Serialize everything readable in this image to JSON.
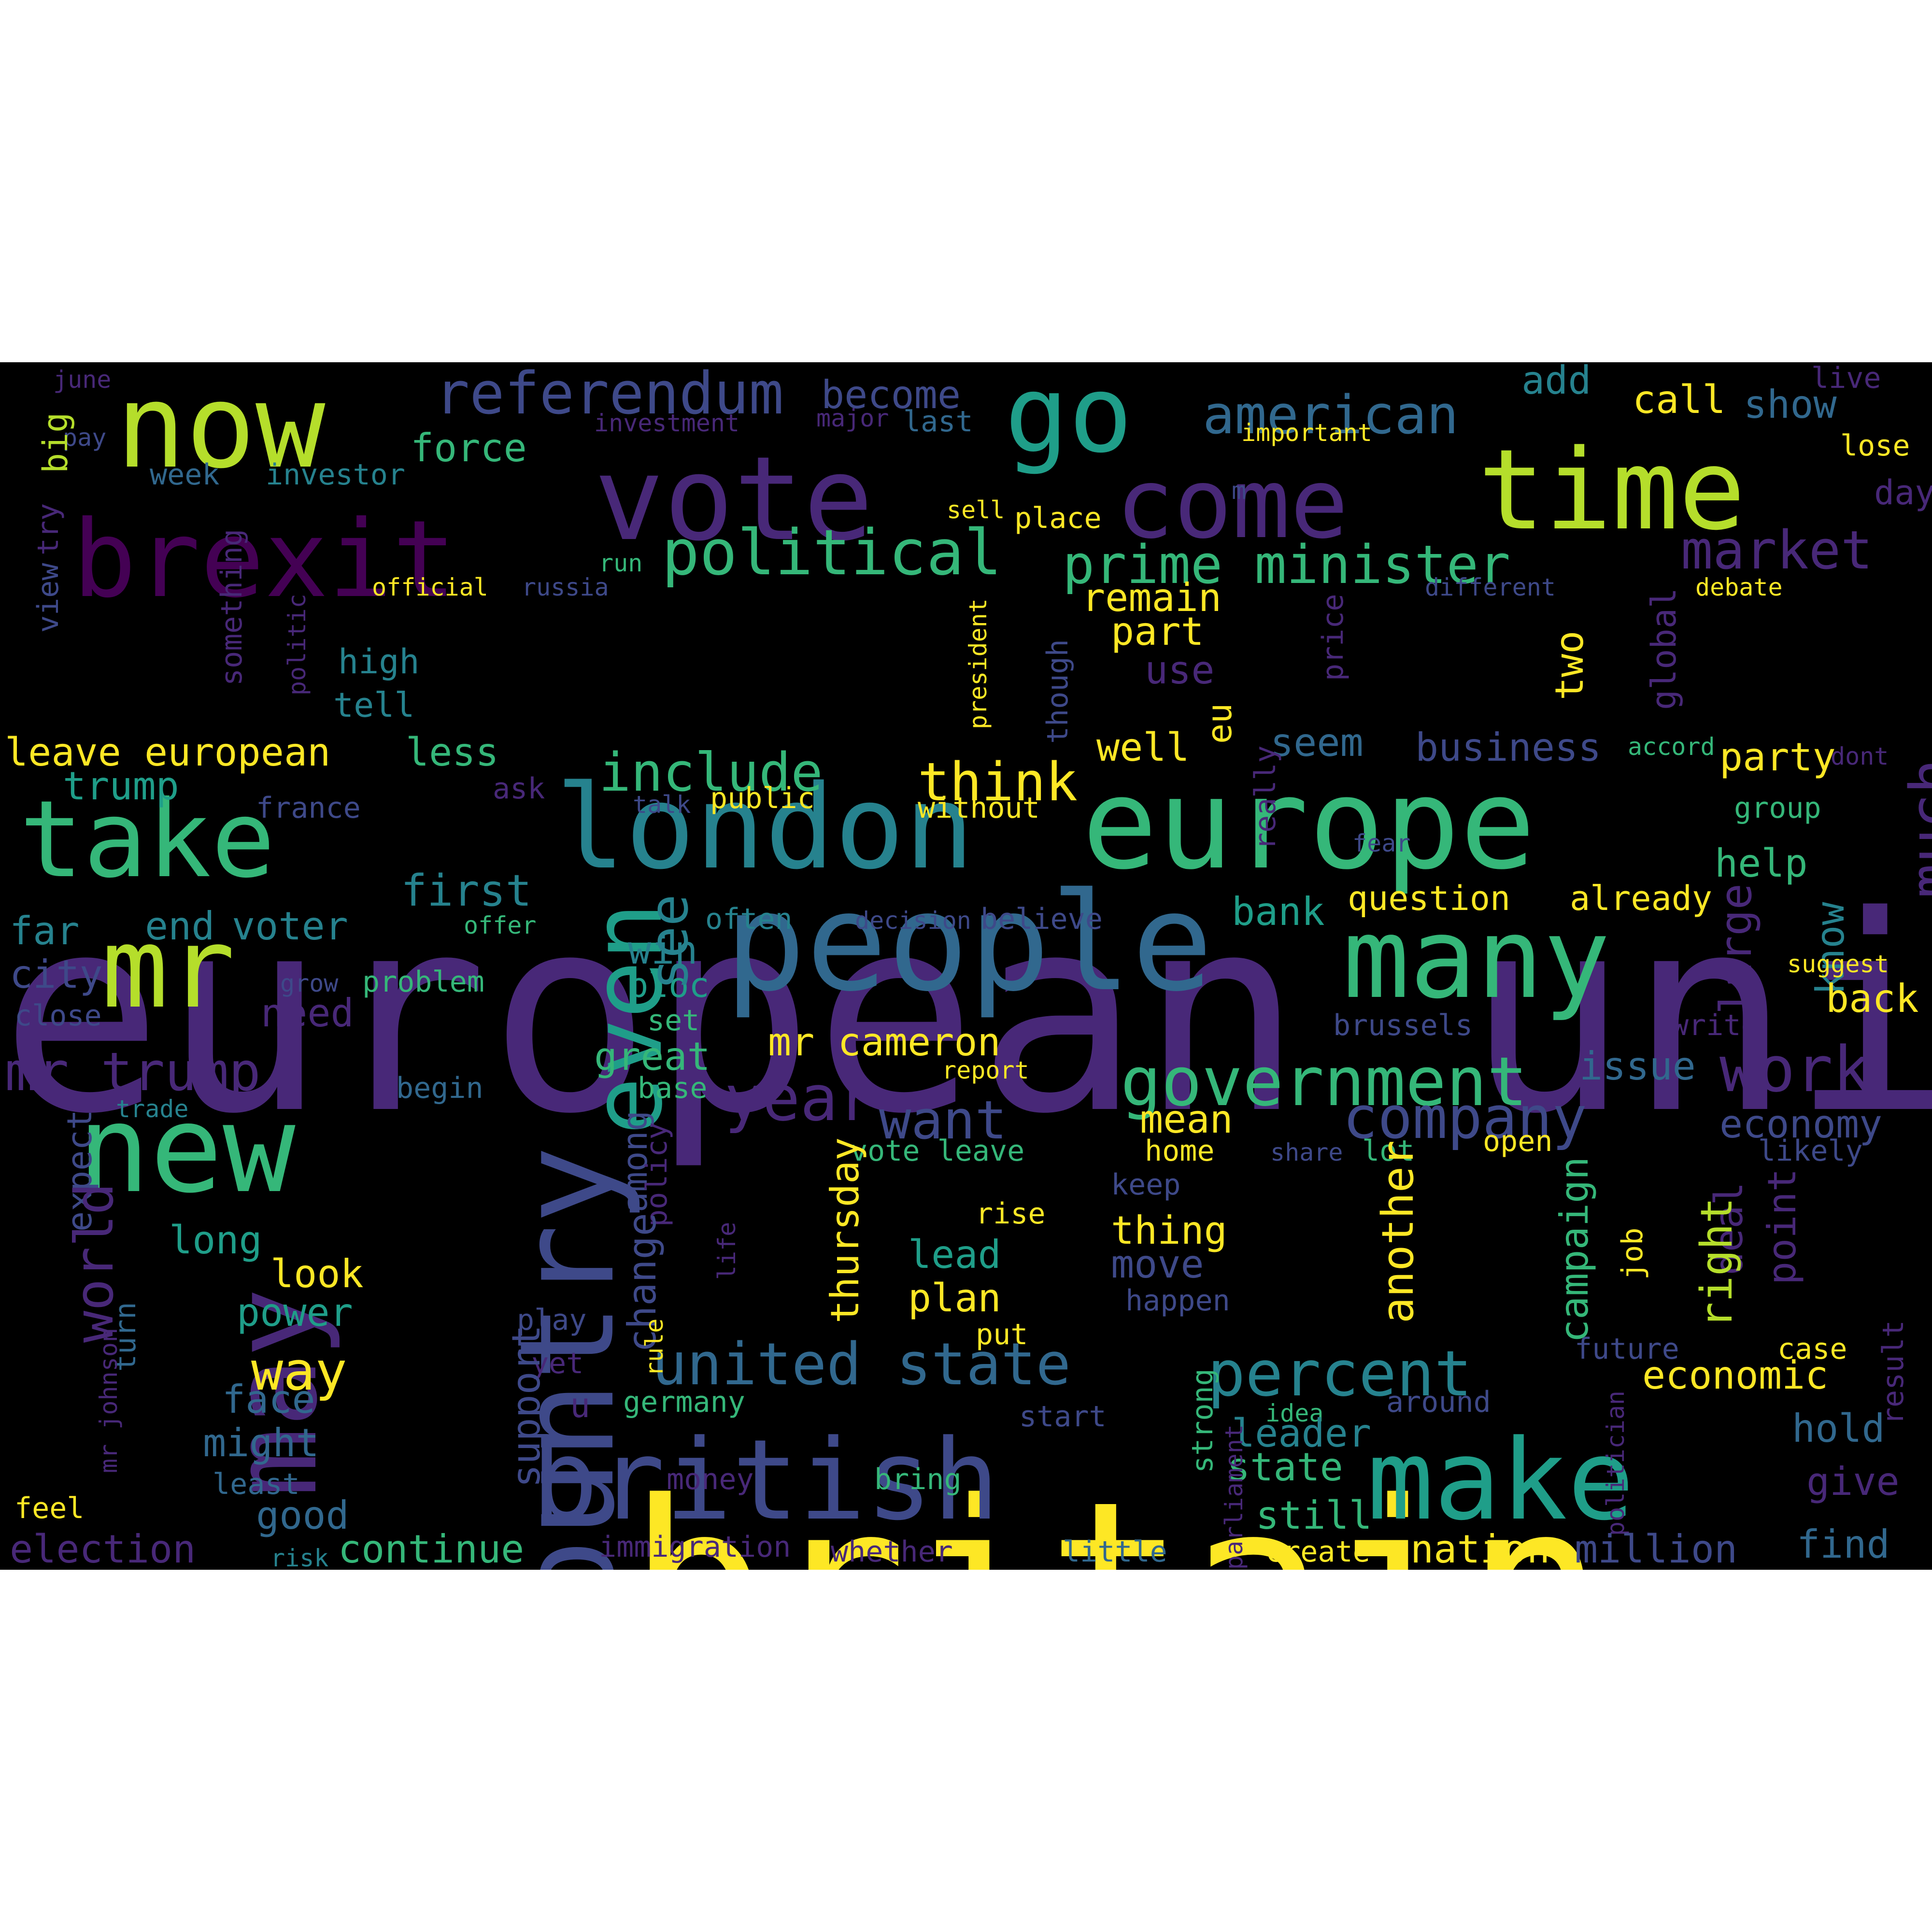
{
  "palette": {
    "c1": "#fde725",
    "c2": "#b5de2b",
    "c3": "#6ece58",
    "c4": "#35b779",
    "c5": "#1f9e89",
    "c6": "#26828e",
    "c7": "#31688e",
    "c8": "#3e4989",
    "c9": "#482878",
    "c10": "#440154"
  },
  "words": [
    {
      "text": "european union",
      "color": "c9"
    },
    {
      "text": "britain",
      "color": "c1"
    },
    {
      "text": "europe",
      "color": "c4"
    },
    {
      "text": "people",
      "color": "c7"
    },
    {
      "text": "country",
      "color": "c8"
    },
    {
      "text": "vote",
      "color": "c9"
    },
    {
      "text": "brexit",
      "color": "c10"
    },
    {
      "text": "now",
      "color": "c2"
    },
    {
      "text": "go",
      "color": "c5"
    },
    {
      "text": "time",
      "color": "c2"
    },
    {
      "text": "come",
      "color": "c9"
    },
    {
      "text": "take",
      "color": "c4"
    },
    {
      "text": "london",
      "color": "c6"
    },
    {
      "text": "many",
      "color": "c4"
    },
    {
      "text": "new",
      "color": "c4"
    },
    {
      "text": "mr",
      "color": "c2"
    },
    {
      "text": "may",
      "color": "c9"
    },
    {
      "text": "even",
      "color": "c5"
    },
    {
      "text": "british",
      "color": "c8"
    },
    {
      "text": "make",
      "color": "c5"
    },
    {
      "text": "government",
      "color": "c4"
    },
    {
      "text": "referendum",
      "color": "c8"
    },
    {
      "text": "american",
      "color": "c7"
    },
    {
      "text": "political",
      "color": "c4"
    },
    {
      "text": "prime minister",
      "color": "c4"
    },
    {
      "text": "market",
      "color": "c9"
    },
    {
      "text": "include",
      "color": "c4"
    },
    {
      "text": "think",
      "color": "c1"
    },
    {
      "text": "united state",
      "color": "c7"
    },
    {
      "text": "percent",
      "color": "c6"
    },
    {
      "text": "company",
      "color": "c8"
    },
    {
      "text": "year",
      "color": "c9"
    },
    {
      "text": "work",
      "color": "c9"
    },
    {
      "text": "mr trump",
      "color": "c9"
    },
    {
      "text": "become",
      "color": "c8"
    },
    {
      "text": "call",
      "color": "c1"
    },
    {
      "text": "show",
      "color": "c7"
    },
    {
      "text": "add",
      "color": "c6"
    },
    {
      "text": "live",
      "color": "c9"
    },
    {
      "text": "lose",
      "color": "c1"
    },
    {
      "text": "day",
      "color": "c9"
    },
    {
      "text": "force",
      "color": "c4"
    },
    {
      "text": "investor",
      "color": "c6"
    },
    {
      "text": "week",
      "color": "c7"
    },
    {
      "text": "investment",
      "color": "c9"
    },
    {
      "text": "major",
      "color": "c9"
    },
    {
      "text": "last",
      "color": "c7"
    },
    {
      "text": "important",
      "color": "c1"
    },
    {
      "text": "june",
      "color": "c9"
    },
    {
      "text": "pay",
      "color": "c8"
    },
    {
      "text": "big",
      "color": "c2"
    },
    {
      "text": "try",
      "color": "c9"
    },
    {
      "text": "view",
      "color": "c8"
    },
    {
      "text": "sell",
      "color": "c1"
    },
    {
      "text": "place",
      "color": "c1"
    },
    {
      "text": "m",
      "color": "c8"
    },
    {
      "text": "run",
      "color": "c4"
    },
    {
      "text": "official",
      "color": "c1"
    },
    {
      "text": "russia",
      "color": "c8"
    },
    {
      "text": "something",
      "color": "c9"
    },
    {
      "text": "politic",
      "color": "c9"
    },
    {
      "text": "high",
      "color": "c6"
    },
    {
      "text": "tell",
      "color": "c6"
    },
    {
      "text": "remain",
      "color": "c1"
    },
    {
      "text": "part",
      "color": "c1"
    },
    {
      "text": "use",
      "color": "c9"
    },
    {
      "text": "two",
      "color": "c1"
    },
    {
      "text": "price",
      "color": "c9"
    },
    {
      "text": "global",
      "color": "c9"
    },
    {
      "text": "different",
      "color": "c8"
    },
    {
      "text": "debate",
      "color": "c1"
    },
    {
      "text": "president",
      "color": "c1"
    },
    {
      "text": "though",
      "color": "c8"
    },
    {
      "text": "eu",
      "color": "c1"
    },
    {
      "text": "leave european",
      "color": "c1"
    },
    {
      "text": "less",
      "color": "c4"
    },
    {
      "text": "trump",
      "color": "c5"
    },
    {
      "text": "france",
      "color": "c8"
    },
    {
      "text": "ask",
      "color": "c9"
    },
    {
      "text": "talk",
      "color": "c8"
    },
    {
      "text": "public",
      "color": "c1"
    },
    {
      "text": "without",
      "color": "c1"
    },
    {
      "text": "well",
      "color": "c1"
    },
    {
      "text": "seem",
      "color": "c7"
    },
    {
      "text": "business",
      "color": "c8"
    },
    {
      "text": "accord",
      "color": "c4"
    },
    {
      "text": "party",
      "color": "c1"
    },
    {
      "text": "dont",
      "color": "c9"
    },
    {
      "text": "group",
      "color": "c4"
    },
    {
      "text": "really",
      "color": "c9"
    },
    {
      "text": "first",
      "color": "c6"
    },
    {
      "text": "end",
      "color": "c6"
    },
    {
      "text": "voter",
      "color": "c6"
    },
    {
      "text": "offer",
      "color": "c4"
    },
    {
      "text": "often",
      "color": "c6"
    },
    {
      "text": "decision",
      "color": "c8"
    },
    {
      "text": "believe",
      "color": "c8"
    },
    {
      "text": "bank",
      "color": "c5"
    },
    {
      "text": "question",
      "color": "c1"
    },
    {
      "text": "already",
      "color": "c1"
    },
    {
      "text": "help",
      "color": "c4"
    },
    {
      "text": "much",
      "color": "c9"
    },
    {
      "text": "large",
      "color": "c9"
    },
    {
      "text": "know",
      "color": "c6"
    },
    {
      "text": "far",
      "color": "c6"
    },
    {
      "text": "city",
      "color": "c8"
    },
    {
      "text": "grow",
      "color": "c8"
    },
    {
      "text": "problem",
      "color": "c4"
    },
    {
      "text": "bloc",
      "color": "c5"
    },
    {
      "text": "win",
      "color": "c6"
    },
    {
      "text": "see",
      "color": "c6"
    },
    {
      "text": "set",
      "color": "c4"
    },
    {
      "text": "close",
      "color": "c8"
    },
    {
      "text": "need",
      "color": "c9"
    },
    {
      "text": "mr cameron",
      "color": "c1"
    },
    {
      "text": "fear",
      "color": "c8"
    },
    {
      "text": "suggest",
      "color": "c1"
    },
    {
      "text": "back",
      "color": "c1"
    },
    {
      "text": "write",
      "color": "c9"
    },
    {
      "text": "brussels",
      "color": "c8"
    },
    {
      "text": "issue",
      "color": "c7"
    },
    {
      "text": "great",
      "color": "c4"
    },
    {
      "text": "report",
      "color": "c1"
    },
    {
      "text": "trade",
      "color": "c6"
    },
    {
      "text": "begin",
      "color": "c7"
    },
    {
      "text": "base",
      "color": "c4"
    },
    {
      "text": "want",
      "color": "c8"
    },
    {
      "text": "mean",
      "color": "c1"
    },
    {
      "text": "economy",
      "color": "c8"
    },
    {
      "text": "expect",
      "color": "c8"
    },
    {
      "text": "among",
      "color": "c8"
    },
    {
      "text": "policy",
      "color": "c9"
    },
    {
      "text": "vote leave",
      "color": "c4"
    },
    {
      "text": "home",
      "color": "c1"
    },
    {
      "text": "share",
      "color": "c8"
    },
    {
      "text": "lot",
      "color": "c4"
    },
    {
      "text": "open",
      "color": "c1"
    },
    {
      "text": "likely",
      "color": "c8"
    },
    {
      "text": "keep",
      "color": "c8"
    },
    {
      "text": "thursday",
      "color": "c1"
    },
    {
      "text": "world",
      "color": "c9"
    },
    {
      "text": "long",
      "color": "c5"
    },
    {
      "text": "look",
      "color": "c1"
    },
    {
      "text": "power",
      "color": "c5"
    },
    {
      "text": "change",
      "color": "c8"
    },
    {
      "text": "rise",
      "color": "c1"
    },
    {
      "text": "lead",
      "color": "c5"
    },
    {
      "text": "plan",
      "color": "c1"
    },
    {
      "text": "thing",
      "color": "c1"
    },
    {
      "text": "move",
      "color": "c8"
    },
    {
      "text": "happen",
      "color": "c8"
    },
    {
      "text": "deal",
      "color": "c9"
    },
    {
      "text": "point",
      "color": "c9"
    },
    {
      "text": "right",
      "color": "c2"
    },
    {
      "text": "another",
      "color": "c1"
    },
    {
      "text": "job",
      "color": "c1"
    },
    {
      "text": "campaign",
      "color": "c4"
    },
    {
      "text": "life",
      "color": "c9"
    },
    {
      "text": "way",
      "color": "c1"
    },
    {
      "text": "play",
      "color": "c8"
    },
    {
      "text": "turn",
      "color": "c7"
    },
    {
      "text": "mr johnson",
      "color": "c9"
    },
    {
      "text": "face",
      "color": "c7"
    },
    {
      "text": "yet",
      "color": "c9"
    },
    {
      "text": "support",
      "color": "c8"
    },
    {
      "text": "put",
      "color": "c1"
    },
    {
      "text": "rule",
      "color": "c1"
    },
    {
      "text": "germany",
      "color": "c4"
    },
    {
      "text": "economic",
      "color": "c1"
    },
    {
      "text": "future",
      "color": "c8"
    },
    {
      "text": "case",
      "color": "c1"
    },
    {
      "text": "result",
      "color": "c9"
    },
    {
      "text": "around",
      "color": "c8"
    },
    {
      "text": "idea",
      "color": "c4"
    },
    {
      "text": "strong",
      "color": "c4"
    },
    {
      "text": "start",
      "color": "c8"
    },
    {
      "text": "might",
      "color": "c7"
    },
    {
      "text": "u",
      "color": "c9"
    },
    {
      "text": "leader",
      "color": "c6"
    },
    {
      "text": "hold",
      "color": "c7"
    },
    {
      "text": "least",
      "color": "c7"
    },
    {
      "text": "state",
      "color": "c4"
    },
    {
      "text": "money",
      "color": "c9"
    },
    {
      "text": "bring",
      "color": "c4"
    },
    {
      "text": "parliament",
      "color": "c9"
    },
    {
      "text": "politician",
      "color": "c9"
    },
    {
      "text": "give",
      "color": "c9"
    },
    {
      "text": "feel",
      "color": "c1"
    },
    {
      "text": "good",
      "color": "c7"
    },
    {
      "text": "still",
      "color": "c4"
    },
    {
      "text": "election",
      "color": "c9"
    },
    {
      "text": "continue",
      "color": "c4"
    },
    {
      "text": "immigration",
      "color": "c9"
    },
    {
      "text": "whether",
      "color": "c9"
    },
    {
      "text": "little",
      "color": "c7"
    },
    {
      "text": "risk",
      "color": "c6"
    },
    {
      "text": "create",
      "color": "c1"
    },
    {
      "text": "nation",
      "color": "c1"
    },
    {
      "text": "million",
      "color": "c8"
    },
    {
      "text": "find",
      "color": "c7"
    }
  ]
}
